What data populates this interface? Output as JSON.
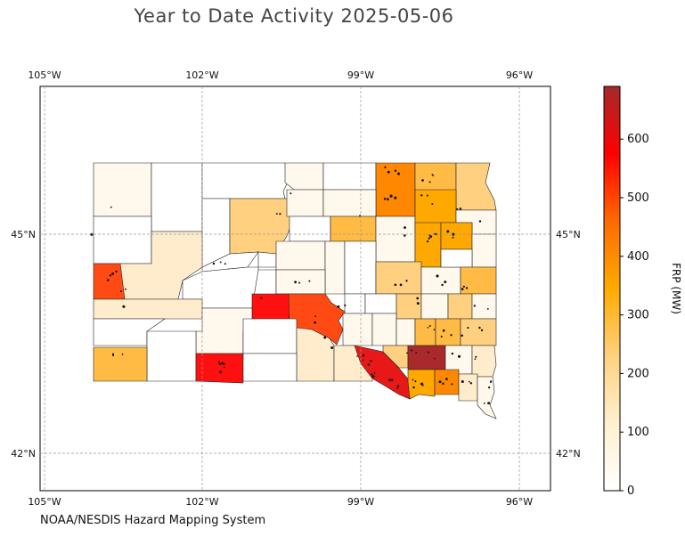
{
  "title": "Year to Date Activity 2025-05-06",
  "credit": "NOAA/NESDIS Hazard Mapping System",
  "map": {
    "lon_ticks": [
      "105°W",
      "102°W",
      "99°W",
      "96°W"
    ],
    "lat_ticks": [
      "45°N",
      "42°N"
    ],
    "gridlines": true
  },
  "colorbar": {
    "label": "FRP (MW)",
    "ticks": [
      "0",
      "100",
      "200",
      "300",
      "400",
      "500",
      "600"
    ],
    "range": [
      0,
      690
    ],
    "colors": [
      "#ffffff",
      "#fff0d0",
      "#ffd080",
      "#ffaa00",
      "#ff6a00",
      "#ff0000",
      "#a52a2a"
    ]
  },
  "colors": {
    "c0": "#ffffff",
    "c1": "#fff8ec",
    "c2": "#ffeccc",
    "c3": "#ffd080",
    "c4": "#ffbb44",
    "c5": "#ffa800",
    "c6": "#ff8800",
    "c7": "#ff4a14",
    "c8": "#ff1010",
    "c9": "#e81818",
    "c10": "#a82a2a"
  }
}
